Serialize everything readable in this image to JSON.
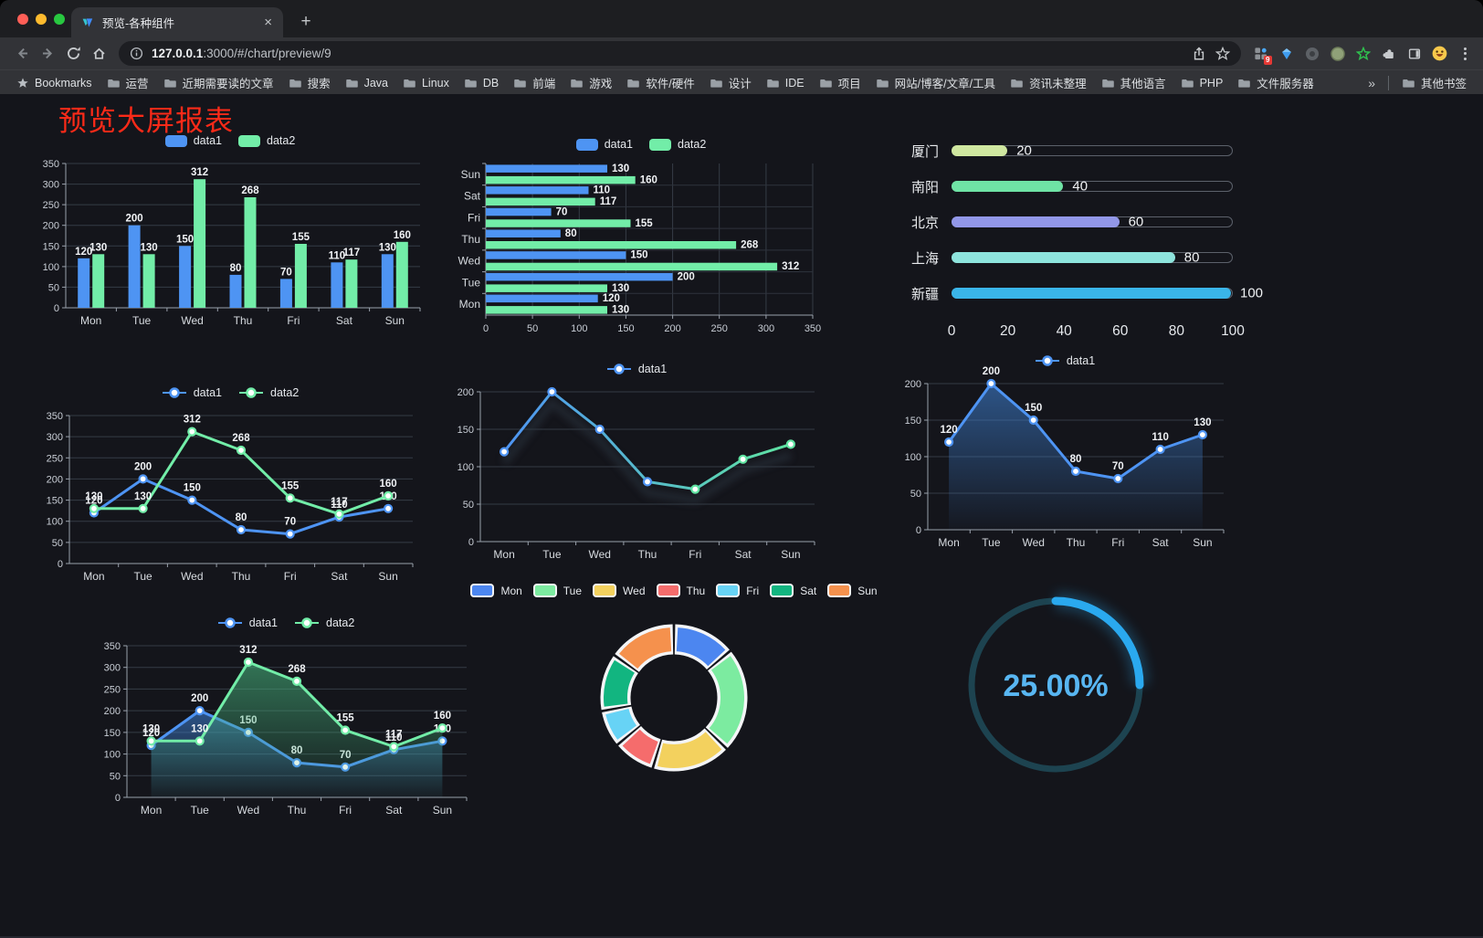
{
  "browser": {
    "tab_title": "预览-各种组件",
    "url_host": "127.0.0.1",
    "url_rest": ":3000/#/chart/preview/9",
    "bookmarks_label": "Bookmarks",
    "bookmark_folders": [
      "运营",
      "近期需要读的文章",
      "搜索",
      "Java",
      "Linux",
      "DB",
      "前端",
      "游戏",
      "软件/硬件",
      "设计",
      "IDE",
      "项目",
      "网站/博客/文章/工具",
      "资讯未整理",
      "其他语言",
      "PHP",
      "文件服务器"
    ],
    "other_bookmarks_label": "其他书签",
    "extension_badge": "9",
    "icons": {
      "new_tab": "+",
      "tab_close": "×",
      "overflow_chevron": "»"
    }
  },
  "page": {
    "title": "预览大屏报表",
    "title_color": "#fb2a18",
    "background": "#14151b"
  },
  "chart_data": [
    {
      "id": "vbar",
      "type": "bar",
      "legend_position": "top",
      "categories": [
        "Mon",
        "Tue",
        "Wed",
        "Thu",
        "Fri",
        "Sat",
        "Sun"
      ],
      "series": [
        {
          "name": "data1",
          "color": "#4e94f3",
          "values": [
            120,
            200,
            150,
            80,
            70,
            110,
            130
          ]
        },
        {
          "name": "data2",
          "color": "#72eda8",
          "values": [
            130,
            130,
            312,
            268,
            155,
            117,
            160
          ]
        }
      ],
      "ylim": [
        0,
        350
      ],
      "ytick_step": 50,
      "value_labels": true,
      "grid": true
    },
    {
      "id": "hbar",
      "type": "bar-horizontal",
      "legend_position": "top",
      "categories": [
        "Mon",
        "Tue",
        "Wed",
        "Thu",
        "Fri",
        "Sat",
        "Sun"
      ],
      "category_axis_order": "reversed-top-to-bottom",
      "series": [
        {
          "name": "data1",
          "color": "#4e94f3",
          "values": [
            120,
            200,
            150,
            80,
            70,
            110,
            130
          ]
        },
        {
          "name": "data2",
          "color": "#72eda8",
          "values": [
            130,
            130,
            312,
            268,
            155,
            117,
            160
          ]
        }
      ],
      "xlim": [
        0,
        350
      ],
      "xtick_step": 50,
      "value_labels": true,
      "grid": true
    },
    {
      "id": "cityprog",
      "type": "progress-bars",
      "max": 100,
      "axis_ticks": [
        0,
        20,
        40,
        60,
        80,
        100
      ],
      "items": [
        {
          "label": "厦门",
          "value": 20,
          "color": "#cfe7a0"
        },
        {
          "label": "南阳",
          "value": 40,
          "color": "#6fe3a5"
        },
        {
          "label": "北京",
          "value": 60,
          "color": "#9297e8"
        },
        {
          "label": "上海",
          "value": 80,
          "color": "#8ee4dd"
        },
        {
          "label": "新疆",
          "value": 100,
          "color": "#3ab5e9"
        }
      ]
    },
    {
      "id": "line2",
      "type": "line",
      "legend_position": "top",
      "categories": [
        "Mon",
        "Tue",
        "Wed",
        "Thu",
        "Fri",
        "Sat",
        "Sun"
      ],
      "series": [
        {
          "name": "data1",
          "color": "#4e94f3",
          "values": [
            120,
            200,
            150,
            80,
            70,
            110,
            130
          ]
        },
        {
          "name": "data2",
          "color": "#72eda8",
          "values": [
            130,
            130,
            312,
            268,
            155,
            117,
            160
          ]
        }
      ],
      "ylim": [
        0,
        350
      ],
      "ytick_step": 50,
      "value_labels": true,
      "markers": true
    },
    {
      "id": "linegrad",
      "type": "line",
      "legend_position": "top",
      "categories": [
        "Mon",
        "Tue",
        "Wed",
        "Thu",
        "Fri",
        "Sat",
        "Sun"
      ],
      "series": [
        {
          "name": "data1",
          "color": "#4e94f3",
          "gradient": [
            "#4e94f3",
            "#5fe3a1"
          ],
          "values": [
            120,
            200,
            150,
            80,
            70,
            110,
            130
          ]
        }
      ],
      "ylim": [
        0,
        200
      ],
      "ytick_step": 50,
      "value_labels": false,
      "markers": true,
      "shadow": true
    },
    {
      "id": "area1",
      "type": "area",
      "legend_position": "top",
      "categories": [
        "Mon",
        "Tue",
        "Wed",
        "Thu",
        "Fri",
        "Sat",
        "Sun"
      ],
      "series": [
        {
          "name": "data1",
          "color": "#4e94f3",
          "fill": "#3e7fd0",
          "values": [
            120,
            200,
            150,
            80,
            70,
            110,
            130
          ]
        }
      ],
      "ylim": [
        0,
        200
      ],
      "ytick_step": 50,
      "value_labels": true,
      "markers": true
    },
    {
      "id": "area2",
      "type": "area",
      "legend_position": "top",
      "categories": [
        "Mon",
        "Tue",
        "Wed",
        "Thu",
        "Fri",
        "Sat",
        "Sun"
      ],
      "series": [
        {
          "name": "data1",
          "color": "#4e94f3",
          "fill": "#3e7fd0",
          "values": [
            120,
            200,
            150,
            80,
            70,
            110,
            130
          ]
        },
        {
          "name": "data2",
          "color": "#72eda8",
          "fill": "#46b37c",
          "values": [
            130,
            130,
            312,
            268,
            155,
            117,
            160
          ]
        }
      ],
      "ylim": [
        0,
        350
      ],
      "ytick_step": 50,
      "value_labels": true,
      "markers": true
    },
    {
      "id": "donut",
      "type": "pie",
      "legend_position": "top",
      "inner_radius_ratio": 0.62,
      "items": [
        {
          "label": "Mon",
          "value": 120,
          "color": "#4c86f0"
        },
        {
          "label": "Tue",
          "value": 200,
          "color": "#7ceba0"
        },
        {
          "label": "Wed",
          "value": 150,
          "color": "#f3d15e"
        },
        {
          "label": "Thu",
          "value": 80,
          "color": "#f56c6c"
        },
        {
          "label": "Fri",
          "value": 70,
          "color": "#67d3f5"
        },
        {
          "label": "Sat",
          "value": 110,
          "color": "#12b580"
        },
        {
          "label": "Sun",
          "value": 130,
          "color": "#f5914d"
        }
      ]
    },
    {
      "id": "gauge",
      "type": "gauge",
      "value": 25,
      "display": "25.00%",
      "progress_color": "#2aa9ef",
      "track_color": "#1d4350",
      "text_color": "#58b6f2"
    }
  ]
}
